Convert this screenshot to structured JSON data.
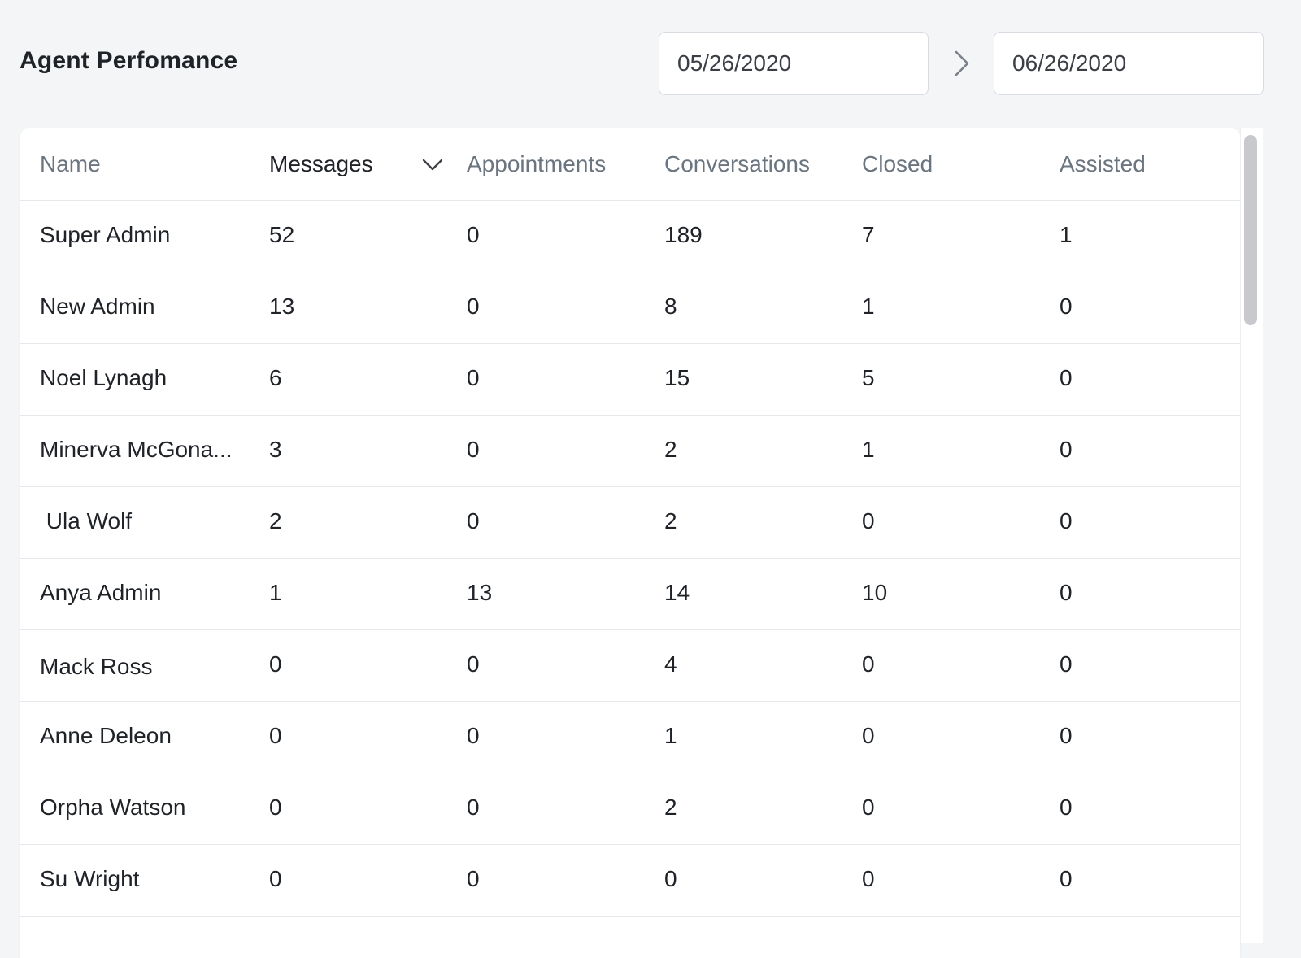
{
  "page": {
    "title": "Agent Perfomance"
  },
  "date_range": {
    "start": "05/26/2020",
    "end": "06/26/2020",
    "separator_icon": "chevron-right-icon"
  },
  "table": {
    "columns": [
      {
        "key": "name",
        "label": "Name"
      },
      {
        "key": "messages",
        "label": "Messages",
        "sorted": true,
        "sort_icon": "chevron-down-icon"
      },
      {
        "key": "appointments",
        "label": "Appointments"
      },
      {
        "key": "conversations",
        "label": "Conversations"
      },
      {
        "key": "closed",
        "label": "Closed"
      },
      {
        "key": "assisted",
        "label": "Assisted"
      }
    ],
    "rows": [
      {
        "name": "Super Admin",
        "messages": "52",
        "appointments": "0",
        "conversations": "189",
        "closed": "7",
        "assisted": "1"
      },
      {
        "name": "New Admin",
        "messages": "13",
        "appointments": "0",
        "conversations": "8",
        "closed": "1",
        "assisted": "0"
      },
      {
        "name": "Noel Lynagh",
        "messages": "6",
        "appointments": "0",
        "conversations": "15",
        "closed": "5",
        "assisted": "0"
      },
      {
        "name": "Minerva McGona...",
        "messages": "3",
        "appointments": "0",
        "conversations": "2",
        "closed": "1",
        "assisted": "0"
      },
      {
        "name": " Ula Wolf",
        "messages": "2",
        "appointments": "0",
        "conversations": "2",
        "closed": "0",
        "assisted": "0"
      },
      {
        "name": "Anya Admin",
        "messages": "1",
        "appointments": "13",
        "conversations": "14",
        "closed": "10",
        "assisted": "0"
      },
      {
        "name": "Mack Ross",
        "messages": "0",
        "appointments": "0",
        "conversations": "4",
        "closed": "0",
        "assisted": "0"
      },
      {
        "name": "Anne Deleon",
        "messages": "0",
        "appointments": "0",
        "conversations": "1",
        "closed": "0",
        "assisted": "0"
      },
      {
        "name": "Orpha Watson",
        "messages": "0",
        "appointments": "0",
        "conversations": "2",
        "closed": "0",
        "assisted": "0"
      },
      {
        "name": "Su Wright",
        "messages": "0",
        "appointments": "0",
        "conversations": "0",
        "closed": "0",
        "assisted": "0"
      }
    ]
  },
  "colors": {
    "background": "#f4f5f7",
    "card": "#ffffff",
    "header_text": "#6b7580",
    "active_header_text": "#1f2328",
    "border": "#e6e8eb"
  }
}
